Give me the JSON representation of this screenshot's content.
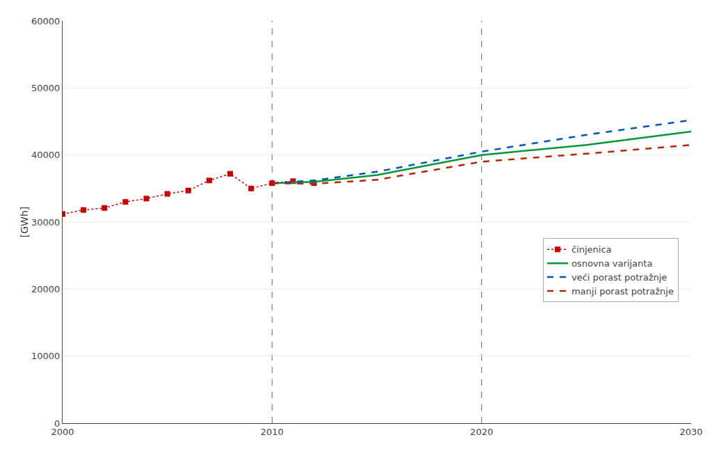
{
  "chart_data": {
    "type": "line",
    "y_label": "[GWh]",
    "xlim": [
      2000,
      2030
    ],
    "ylim": [
      0,
      60000
    ],
    "xticks": [
      2000,
      2010,
      2020,
      2030
    ],
    "yticks": [
      0,
      10000,
      20000,
      30000,
      40000,
      50000,
      60000
    ],
    "grid": "y",
    "legend": "lower right",
    "vlines": [
      2010,
      2020
    ],
    "series": [
      {
        "name": "činjenica",
        "color": "#CC0000",
        "marker": "square",
        "line_style": "dotted",
        "x": [
          2000,
          2001,
          2002,
          2003,
          2004,
          2005,
          2006,
          2007,
          2008,
          2009,
          2010,
          2011,
          2012
        ],
        "values": [
          31200,
          31800,
          32100,
          33000,
          33500,
          34200,
          34700,
          36200,
          37200,
          35000,
          35800,
          36100,
          35800
        ]
      },
      {
        "name": "osnovna varijanta",
        "color": "#009933",
        "line_style": "solid",
        "x": [
          2010,
          2012,
          2015,
          2020,
          2025,
          2030
        ],
        "values": [
          35800,
          36000,
          37000,
          40000,
          41500,
          43500
        ]
      },
      {
        "name": "veći porast potražnje",
        "color": "#0055BB",
        "line_style": "dashed",
        "x": [
          2010,
          2012,
          2015,
          2020,
          2025,
          2030
        ],
        "values": [
          35800,
          36200,
          37500,
          40500,
          43000,
          45200
        ]
      },
      {
        "name": "manji porast potražnje",
        "color": "#BB2200",
        "line_style": "dashed",
        "x": [
          2010,
          2012,
          2015,
          2020,
          2025,
          2030
        ],
        "values": [
          35800,
          35700,
          36300,
          39000,
          40200,
          41500
        ]
      }
    ]
  }
}
